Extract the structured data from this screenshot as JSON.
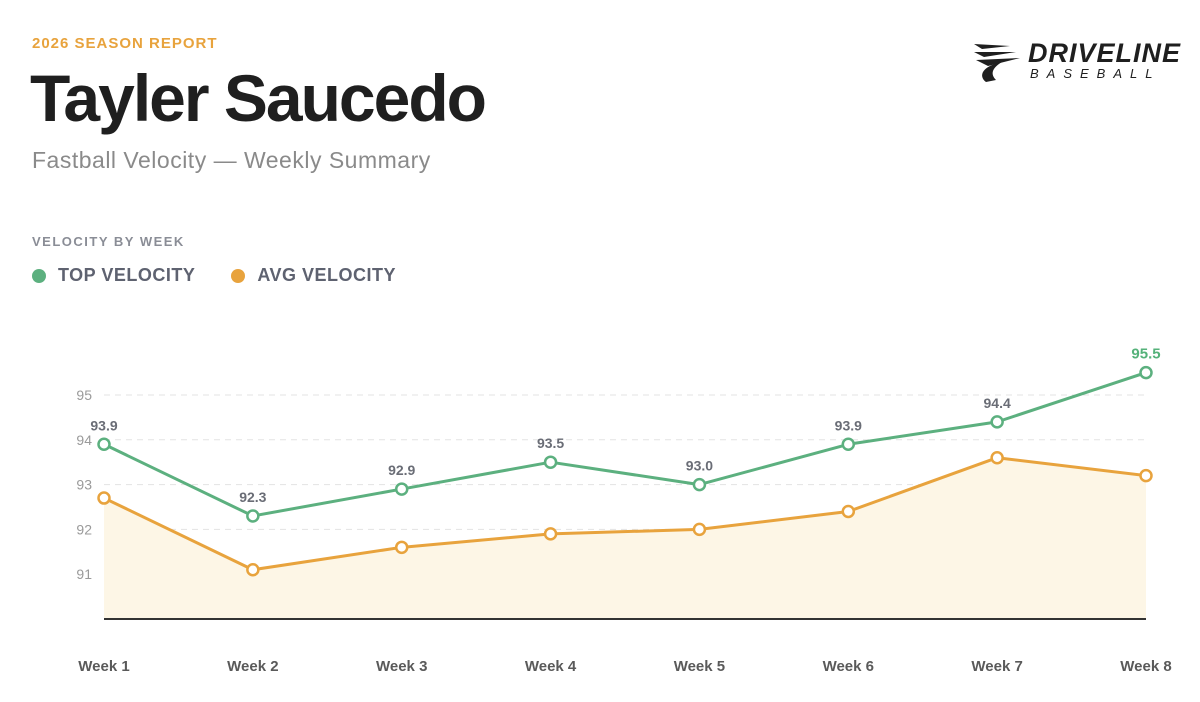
{
  "header": {
    "eyebrow": "2026 SEASON REPORT",
    "player_name": "Tayler Saucedo",
    "subtitle": "Fastball Velocity — Weekly Summary"
  },
  "logo": {
    "word": "DRIVELINE",
    "sub": "BASEBALL"
  },
  "section": {
    "title": "VELOCITY BY WEEK"
  },
  "colors": {
    "top": "#5cb07f",
    "avg": "#e8a33d",
    "area": "#fdf6e6",
    "grid": "#e3e3e3",
    "axis": "#333333"
  },
  "chart_data": {
    "type": "line",
    "title": "",
    "xlabel": "",
    "ylabel": "",
    "categories": [
      "Week 1",
      "Week 2",
      "Week 3",
      "Week 4",
      "Week 5",
      "Week 6",
      "Week 7",
      "Week 8"
    ],
    "series": [
      {
        "name": "TOP VELOCITY",
        "values": [
          93.9,
          92.3,
          92.9,
          93.5,
          93.0,
          93.9,
          94.4,
          95.5
        ],
        "data_labels": [
          "93.9",
          "92.3",
          "92.9",
          "93.5",
          "93.0",
          "93.9",
          "94.4",
          "95.5"
        ]
      },
      {
        "name": "AVG VELOCITY",
        "values": [
          92.7,
          91.1,
          91.6,
          91.9,
          92.0,
          92.4,
          93.6,
          93.2
        ]
      }
    ],
    "yticks": [
      "91",
      "92",
      "93",
      "94",
      "95"
    ],
    "ylim": [
      90,
      95.5
    ],
    "grid": true,
    "legend_position": "top-left"
  }
}
